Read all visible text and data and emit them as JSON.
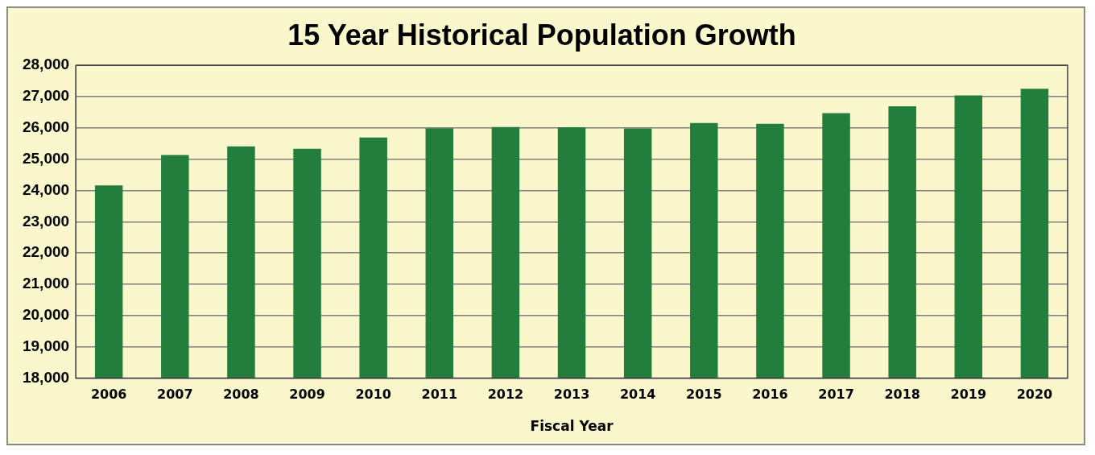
{
  "chart_data": {
    "type": "bar",
    "title": "15 Year Historical Population Growth",
    "xlabel": "Fiscal Year",
    "categories": [
      "2006",
      "2007",
      "2008",
      "2009",
      "2010",
      "2011",
      "2012",
      "2013",
      "2014",
      "2015",
      "2016",
      "2017",
      "2018",
      "2019",
      "2020"
    ],
    "values": [
      24160,
      25130,
      25410,
      25330,
      25690,
      25990,
      26030,
      26020,
      25980,
      26160,
      26130,
      26470,
      26690,
      27040,
      27250
    ],
    "color": "#237d3c",
    "ylim": [
      18000,
      28000
    ],
    "yticks": [
      {
        "value": 18000,
        "label": "18,000"
      },
      {
        "value": 19000,
        "label": "19,000"
      },
      {
        "value": 20000,
        "label": "20,000"
      },
      {
        "value": 21000,
        "label": "21,000"
      },
      {
        "value": 22000,
        "label": "22,000"
      },
      {
        "value": 23000,
        "label": "23,000"
      },
      {
        "value": 24000,
        "label": "24,000"
      },
      {
        "value": 25000,
        "label": "25,000"
      },
      {
        "value": 26000,
        "label": "26,000"
      },
      {
        "value": 27000,
        "label": "27,000"
      },
      {
        "value": 28000,
        "label": "28,000"
      }
    ],
    "grid": "y",
    "legend": false
  }
}
